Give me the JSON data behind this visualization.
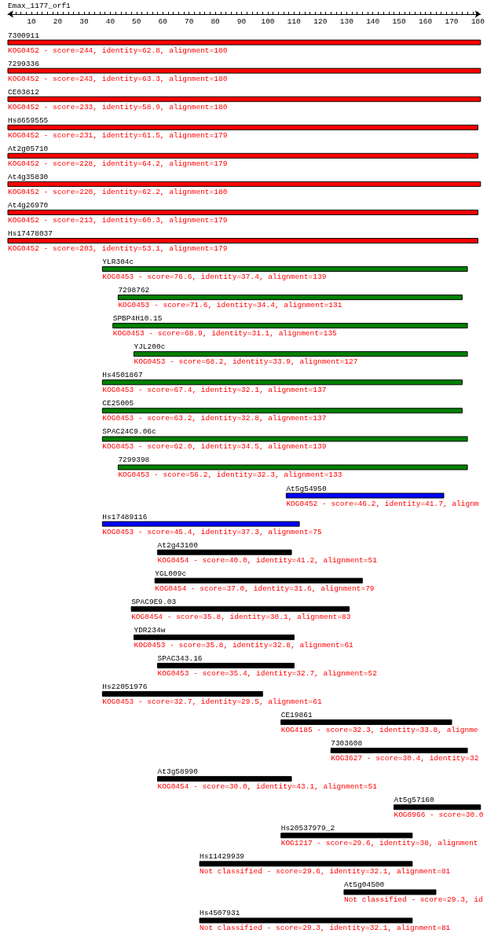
{
  "chart_data": {
    "type": "bar",
    "orientation": "horizontal",
    "title": "Emax_1177_orf1",
    "categories": [
      "7300911",
      "7299336",
      "CE03812",
      "Hs8659555",
      "At2g05710",
      "At4g35830",
      "At4g26970",
      "Hs17478037",
      "YLR304c",
      "7298762",
      "SPBP4H10.15",
      "YJL200c",
      "Hs4501867",
      "CE25005",
      "SPAC24C9.06c",
      "7299398",
      "At5g54950",
      "Hs17489116",
      "At2g43100",
      "YGL009c",
      "SPAC9E9.03",
      "YDR234w",
      "SPAC343.16",
      "Hs22051976",
      "CE19861",
      "7303608",
      "At3g58990",
      "At5g57160",
      "Hs20537979_2",
      "Hs11429939",
      "At5g04500",
      "Hs4507931"
    ],
    "base": [
      1,
      1,
      1,
      1,
      1,
      1,
      1,
      1,
      37,
      43,
      41,
      49,
      37,
      37,
      37,
      43,
      107,
      37,
      58,
      57,
      48,
      49,
      58,
      37,
      105,
      124,
      58,
      148,
      105,
      74,
      129,
      74
    ],
    "values": [
      180,
      180,
      180,
      179,
      179,
      180,
      179,
      179,
      139,
      131,
      135,
      127,
      137,
      137,
      139,
      133,
      60,
      75,
      51,
      79,
      83,
      61,
      52,
      61,
      65,
      52,
      51,
      33,
      50,
      81,
      35,
      81
    ],
    "colors": [
      "#ff0000",
      "#ff0000",
      "#ff0000",
      "#ff0000",
      "#ff0000",
      "#ff0000",
      "#ff0000",
      "#ff0000",
      "#008000",
      "#008000",
      "#008000",
      "#008000",
      "#008000",
      "#008000",
      "#008000",
      "#008000",
      "#0000ff",
      "#0000ff",
      "#000000",
      "#000000",
      "#000000",
      "#000000",
      "#000000",
      "#000000",
      "#000000",
      "#000000",
      "#000000",
      "#000000",
      "#000000",
      "#000000",
      "#000000",
      "#000000"
    ],
    "xlim": [
      1,
      181
    ],
    "xticks": [
      {
        "value": 2,
        "label": null
      },
      {
        "value": 4,
        "label": null
      },
      {
        "value": 6,
        "label": null
      },
      {
        "value": 8,
        "label": null
      },
      10,
      {
        "value": 12,
        "label": null
      },
      {
        "value": 14,
        "label": null
      },
      {
        "value": 16,
        "label": null
      },
      {
        "value": 18,
        "label": null
      },
      20,
      {
        "value": 22,
        "label": null
      },
      {
        "value": 24,
        "label": null
      },
      {
        "value": 26,
        "label": null
      },
      {
        "value": 28,
        "label": null
      },
      30,
      {
        "value": 32,
        "label": null
      },
      {
        "value": 34,
        "label": null
      },
      {
        "value": 36,
        "label": null
      },
      {
        "value": 38,
        "label": null
      },
      40,
      {
        "value": 42,
        "label": null
      },
      {
        "value": 44,
        "label": null
      },
      {
        "value": 46,
        "label": null
      },
      {
        "value": 48,
        "label": null
      },
      50,
      {
        "value": 52,
        "label": null
      },
      {
        "value": 54,
        "label": null
      },
      {
        "value": 56,
        "label": null
      },
      {
        "value": 58,
        "label": null
      },
      60,
      {
        "value": 62,
        "label": null
      },
      {
        "value": 64,
        "label": null
      },
      {
        "value": 66,
        "label": null
      },
      {
        "value": 68,
        "label": null
      },
      70,
      {
        "value": 72,
        "label": null
      },
      {
        "value": 74,
        "label": null
      },
      {
        "value": 76,
        "label": null
      },
      {
        "value": 78,
        "label": null
      },
      80,
      {
        "value": 82,
        "label": null
      },
      {
        "value": 84,
        "label": null
      },
      {
        "value": 86,
        "label": null
      },
      {
        "value": 88,
        "label": null
      },
      90,
      {
        "value": 92,
        "label": null
      },
      {
        "value": 94,
        "label": null
      },
      {
        "value": 96,
        "label": null
      },
      {
        "value": 98,
        "label": null
      },
      100,
      {
        "value": 102,
        "label": null
      },
      {
        "value": 104,
        "label": null
      },
      {
        "value": 106,
        "label": null
      },
      {
        "value": 108,
        "label": null
      },
      110,
      {
        "value": 112,
        "label": null
      },
      {
        "value": 114,
        "label": null
      },
      {
        "value": 116,
        "label": null
      },
      {
        "value": 118,
        "label": null
      },
      120,
      {
        "value": 122,
        "label": null
      },
      {
        "value": 124,
        "label": null
      },
      {
        "value": 126,
        "label": null
      },
      {
        "value": 128,
        "label": null
      },
      130,
      {
        "value": 132,
        "label": null
      },
      {
        "value": 134,
        "label": null
      },
      {
        "value": 136,
        "label": null
      },
      {
        "value": 138,
        "label": null
      },
      140,
      {
        "value": 142,
        "label": null
      },
      {
        "value": 144,
        "label": null
      },
      {
        "value": 146,
        "label": null
      },
      {
        "value": 148,
        "label": null
      },
      150,
      {
        "value": 152,
        "label": null
      },
      {
        "value": 154,
        "label": null
      },
      {
        "value": 156,
        "label": null
      },
      {
        "value": 158,
        "label": null
      },
      160,
      {
        "value": 162,
        "label": null
      },
      {
        "value": 164,
        "label": null
      },
      {
        "value": 166,
        "label": null
      },
      {
        "value": 168,
        "label": null
      },
      170,
      {
        "value": 172,
        "label": null
      },
      {
        "value": 174,
        "label": null
      },
      {
        "value": 176,
        "label": null
      },
      {
        "value": 178,
        "label": null
      },
      180
    ],
    "annotations": [
      "KOG0452 - score=244, identity=62.8, alignment=180",
      "KOG0452 - score=243, identity=63.3, alignment=180",
      "KOG0452 - score=233, identity=58.9, alignment=180",
      "KOG0452 - score=231, identity=61.5, alignment=179",
      "KOG0452 - score=228, identity=64.2, alignment=179",
      "KOG0452 - score=220, identity=62.2, alignment=180",
      "KOG0452 - score=213, identity=60.3, alignment=179",
      "KOG0452 - score=203, identity=53.1, alignment=179",
      "KOG0453 - score=76.6, identity=37.4, alignment=139",
      "KOG0453 - score=71.6, identity=34.4, alignment=131",
      "KOG0453 - score=68.9, identity=31.1, alignment=135",
      "KOG0453 - score=68.2, identity=33.9, alignment=127",
      "KOG0453 - score=67.4, identity=32.1, alignment=137",
      "KOG0453 - score=63.2, identity=32.8, alignment=137",
      "KOG0453 - score=62.0, identity=34.5, alignment=139",
      "KOG0453 - score=56.2, identity=32.3, alignment=133",
      "KOG0452 - score=46.2, identity=41.7, alignm",
      "KOG0453 - score=45.4, identity=37.3, alignment=75",
      "KOG0454 - score=40.0, identity=41.2, alignment=51",
      "KOG0454 - score=37.0, identity=31.6, alignment=79",
      "KOG0454 - score=35.8, identity=30.1, alignment=83",
      "KOG0453 - score=35.8, identity=32.8, alignment=61",
      "KOG0453 - score=35.4, identity=32.7, alignment=52",
      "KOG0453 - score=32.7, identity=29.5, alignment=61",
      "KOG4185 - score=32.3, identity=33.8, alignme",
      "KOG3627 - score=30.4, identity=32",
      "KOG0454 - score=30.0, identity=43.1, alignment=51",
      "KOG0966 - score=30.0",
      "KOG1217 - score=29.6, identity=38, alignment",
      "Not classified - score=29.6, identity=32.1, alignment=81",
      "Not classified - score=29.3, id",
      "Not classified - score=29.3, identity=32.1, alignment=81"
    ]
  }
}
